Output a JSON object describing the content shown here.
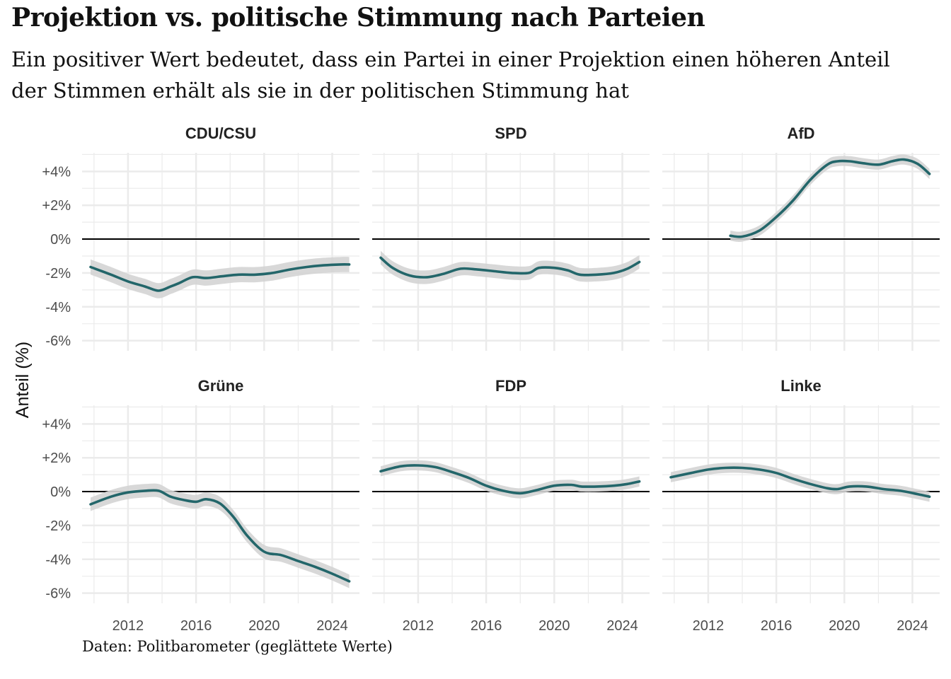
{
  "title": "Projektion vs. politische Stimmung nach Parteien",
  "subtitle": "Ein positiver Wert bedeutet, dass ein Partei in einer Projektion einen höheren Anteil der Stimmen erhält als sie in der politischen Stimmung hat",
  "caption": "Daten: Politbarometer (geglättete Werte)",
  "colors": {
    "line": "#23666a",
    "band": "#d4d4d4",
    "grid": "#ebebeb",
    "zero": "#000000"
  },
  "chart_data": {
    "type": "line",
    "facet_rows": 2,
    "facet_cols": 3,
    "xlim": [
      2009.3,
      2025.6
    ],
    "ylim": [
      -6.6,
      5.1
    ],
    "x_ticks": [
      2012,
      2016,
      2020,
      2024
    ],
    "y_ticks": [
      4,
      2,
      0,
      -2,
      -4,
      -6
    ],
    "y_tick_labels": [
      "+4%",
      "+2%",
      "0%",
      "-2%",
      "-4%",
      "-6%"
    ],
    "ylabel": "Anteil (%)",
    "xlabel": "",
    "grid": true,
    "reference_line": 0,
    "panels": [
      {
        "name": "CDU/CSU",
        "band": 0.45,
        "x": [
          2009.8,
          2011,
          2012,
          2013,
          2013.8,
          2014.5,
          2015,
          2015.8,
          2016.6,
          2017.5,
          2018.5,
          2019.5,
          2020.5,
          2021.5,
          2022.5,
          2023.5,
          2024.5,
          2025
        ],
        "y": [
          -1.65,
          -2.1,
          -2.5,
          -2.8,
          -3.05,
          -2.8,
          -2.6,
          -2.25,
          -2.3,
          -2.2,
          -2.1,
          -2.1,
          -2.0,
          -1.8,
          -1.65,
          -1.55,
          -1.5,
          -1.5
        ]
      },
      {
        "name": "SPD",
        "band": 0.4,
        "x": [
          2009.8,
          2010.5,
          2011.5,
          2012.5,
          2013.5,
          2014.5,
          2015.5,
          2016.5,
          2017.5,
          2018.5,
          2019.1,
          2020,
          2020.8,
          2021.5,
          2022.5,
          2023.5,
          2024.3,
          2025
        ],
        "y": [
          -1.1,
          -1.7,
          -2.15,
          -2.25,
          -2.05,
          -1.75,
          -1.8,
          -1.9,
          -2.0,
          -2.0,
          -1.7,
          -1.7,
          -1.85,
          -2.1,
          -2.1,
          -2.0,
          -1.75,
          -1.35
        ]
      },
      {
        "name": "AfD",
        "band": 0.3,
        "x": [
          2013.3,
          2014,
          2015,
          2016,
          2017,
          2018,
          2019,
          2019.6,
          2020.3,
          2021,
          2022,
          2022.8,
          2023.5,
          2024.3,
          2025
        ],
        "y": [
          0.2,
          0.15,
          0.5,
          1.3,
          2.3,
          3.5,
          4.4,
          4.6,
          4.6,
          4.5,
          4.4,
          4.6,
          4.7,
          4.45,
          3.85
        ]
      },
      {
        "name": "Grüne",
        "band": 0.4,
        "x": [
          2009.8,
          2011,
          2012,
          2013,
          2013.8,
          2014.5,
          2015.3,
          2016,
          2016.6,
          2017.4,
          2018.2,
          2019,
          2020,
          2021,
          2022,
          2023,
          2024,
          2025
        ],
        "y": [
          -0.75,
          -0.3,
          -0.05,
          0.05,
          0.05,
          -0.3,
          -0.5,
          -0.6,
          -0.45,
          -0.7,
          -1.5,
          -2.6,
          -3.55,
          -3.75,
          -4.1,
          -4.45,
          -4.85,
          -5.3
        ]
      },
      {
        "name": "FDP",
        "band": 0.3,
        "x": [
          2009.8,
          2011,
          2012,
          2013,
          2014,
          2015,
          2016,
          2017,
          2018,
          2019,
          2020,
          2021,
          2021.6,
          2022.5,
          2023.5,
          2024.3,
          2025
        ],
        "y": [
          1.2,
          1.5,
          1.55,
          1.45,
          1.15,
          0.8,
          0.35,
          0.05,
          -0.1,
          0.1,
          0.35,
          0.4,
          0.3,
          0.3,
          0.35,
          0.45,
          0.6
        ]
      },
      {
        "name": "Linke",
        "band": 0.3,
        "x": [
          2009.8,
          2011,
          2012,
          2013,
          2014,
          2015,
          2016,
          2017,
          2018,
          2019,
          2019.6,
          2020.3,
          2021.3,
          2022.3,
          2023.3,
          2024.3,
          2025
        ],
        "y": [
          0.85,
          1.1,
          1.3,
          1.4,
          1.4,
          1.3,
          1.1,
          0.75,
          0.45,
          0.2,
          0.15,
          0.3,
          0.3,
          0.15,
          0.05,
          -0.15,
          -0.3
        ]
      }
    ]
  }
}
